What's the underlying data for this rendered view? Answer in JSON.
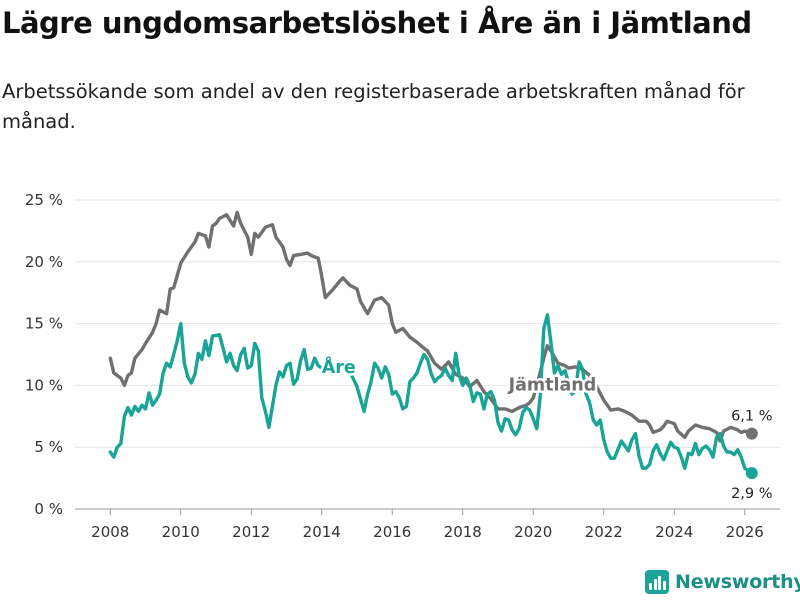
{
  "header": {
    "title": "Lägre ungdomsarbetslöshet i Åre än i Jämtland",
    "subtitle": "Arbetssökande som andel av den registerbaserade arbetskraften månad för månad."
  },
  "brand": {
    "name": "Newsworthy",
    "logo_icon": "bar-chart-icon"
  },
  "chart_data": {
    "type": "line",
    "title": "Lägre ungdomsarbetslöshet i Åre än i Jämtland",
    "xlabel": "",
    "ylabel": "",
    "xlim": [
      2007.0,
      2027.0
    ],
    "ylim": [
      0,
      25
    ],
    "yticks": [
      0,
      5,
      10,
      15,
      20,
      25
    ],
    "ytick_labels": [
      "0 %",
      "5 %",
      "10 %",
      "15 %",
      "20 %",
      "25 %"
    ],
    "xticks": [
      2008,
      2010,
      2012,
      2014,
      2016,
      2018,
      2020,
      2022,
      2024,
      2026
    ],
    "xtick_labels": [
      "2008",
      "2010",
      "2012",
      "2014",
      "2016",
      "2018",
      "2020",
      "2022",
      "2024",
      "2026"
    ],
    "grid": "horizontal",
    "series": [
      {
        "name": "Jämtland",
        "color": "#707070",
        "end_label": "6,1 %",
        "points": [
          [
            2008.0,
            12.2
          ],
          [
            2008.1,
            11.0
          ],
          [
            2008.3,
            10.6
          ],
          [
            2008.4,
            10.0
          ],
          [
            2008.5,
            10.8
          ],
          [
            2008.6,
            11.0
          ],
          [
            2008.7,
            12.2
          ],
          [
            2008.9,
            12.9
          ],
          [
            2009.0,
            13.4
          ],
          [
            2009.2,
            14.3
          ],
          [
            2009.3,
            15.0
          ],
          [
            2009.4,
            16.1
          ],
          [
            2009.6,
            15.8
          ],
          [
            2009.7,
            17.8
          ],
          [
            2009.8,
            17.9
          ],
          [
            2010.0,
            19.9
          ],
          [
            2010.2,
            20.8
          ],
          [
            2010.4,
            21.6
          ],
          [
            2010.5,
            22.3
          ],
          [
            2010.7,
            22.1
          ],
          [
            2010.8,
            21.2
          ],
          [
            2010.9,
            22.9
          ],
          [
            2011.0,
            23.1
          ],
          [
            2011.1,
            23.5
          ],
          [
            2011.3,
            23.8
          ],
          [
            2011.5,
            22.9
          ],
          [
            2011.6,
            24.0
          ],
          [
            2011.7,
            23.1
          ],
          [
            2011.9,
            22.0
          ],
          [
            2012.0,
            20.6
          ],
          [
            2012.1,
            22.3
          ],
          [
            2012.2,
            22.0
          ],
          [
            2012.4,
            22.8
          ],
          [
            2012.6,
            23.0
          ],
          [
            2012.7,
            22.0
          ],
          [
            2012.9,
            21.2
          ],
          [
            2013.0,
            20.2
          ],
          [
            2013.1,
            19.7
          ],
          [
            2013.2,
            20.5
          ],
          [
            2013.4,
            20.6
          ],
          [
            2013.6,
            20.7
          ],
          [
            2013.7,
            20.5
          ],
          [
            2013.9,
            20.3
          ],
          [
            2014.0,
            18.8
          ],
          [
            2014.1,
            17.1
          ],
          [
            2014.3,
            17.7
          ],
          [
            2014.5,
            18.4
          ],
          [
            2014.6,
            18.7
          ],
          [
            2014.8,
            18.1
          ],
          [
            2015.0,
            17.8
          ],
          [
            2015.1,
            16.8
          ],
          [
            2015.3,
            15.8
          ],
          [
            2015.5,
            16.9
          ],
          [
            2015.7,
            17.1
          ],
          [
            2015.9,
            16.5
          ],
          [
            2016.0,
            15.0
          ],
          [
            2016.1,
            14.3
          ],
          [
            2016.3,
            14.6
          ],
          [
            2016.5,
            13.9
          ],
          [
            2016.7,
            13.5
          ],
          [
            2016.9,
            13.0
          ],
          [
            2017.0,
            12.8
          ],
          [
            2017.2,
            11.8
          ],
          [
            2017.4,
            11.3
          ],
          [
            2017.6,
            11.9
          ],
          [
            2017.8,
            10.9
          ],
          [
            2018.0,
            10.6
          ],
          [
            2018.2,
            9.9
          ],
          [
            2018.4,
            10.4
          ],
          [
            2018.6,
            9.5
          ],
          [
            2018.8,
            8.9
          ],
          [
            2019.0,
            8.1
          ],
          [
            2019.2,
            8.1
          ],
          [
            2019.4,
            7.9
          ],
          [
            2019.6,
            8.2
          ],
          [
            2019.8,
            8.4
          ],
          [
            2019.9,
            8.6
          ],
          [
            2020.0,
            9.0
          ],
          [
            2020.15,
            10.5
          ],
          [
            2020.3,
            12.2
          ],
          [
            2020.4,
            13.2
          ],
          [
            2020.5,
            12.8
          ],
          [
            2020.7,
            11.8
          ],
          [
            2020.9,
            11.6
          ],
          [
            2021.0,
            11.4
          ],
          [
            2021.2,
            11.5
          ],
          [
            2021.4,
            11.3
          ],
          [
            2021.6,
            10.8
          ],
          [
            2021.8,
            9.9
          ],
          [
            2022.0,
            8.8
          ],
          [
            2022.2,
            8.0
          ],
          [
            2022.4,
            8.1
          ],
          [
            2022.6,
            7.9
          ],
          [
            2022.8,
            7.6
          ],
          [
            2023.0,
            7.1
          ],
          [
            2023.2,
            7.1
          ],
          [
            2023.3,
            6.8
          ],
          [
            2023.4,
            6.2
          ],
          [
            2023.6,
            6.4
          ],
          [
            2023.7,
            6.7
          ],
          [
            2023.8,
            7.1
          ],
          [
            2024.0,
            6.9
          ],
          [
            2024.1,
            6.3
          ],
          [
            2024.3,
            5.8
          ],
          [
            2024.4,
            6.3
          ],
          [
            2024.6,
            6.8
          ],
          [
            2024.8,
            6.6
          ],
          [
            2025.0,
            6.5
          ],
          [
            2025.2,
            6.2
          ],
          [
            2025.3,
            5.5
          ],
          [
            2025.4,
            6.3
          ],
          [
            2025.6,
            6.6
          ],
          [
            2025.8,
            6.4
          ],
          [
            2025.9,
            6.2
          ],
          [
            2026.0,
            6.3
          ],
          [
            2026.2,
            6.1
          ]
        ]
      },
      {
        "name": "Åre",
        "color": "#18a497",
        "end_label": "2,9 %",
        "points": [
          [
            2008.0,
            4.6
          ],
          [
            2008.1,
            4.2
          ],
          [
            2008.2,
            5.0
          ],
          [
            2008.3,
            5.3
          ],
          [
            2008.4,
            7.5
          ],
          [
            2008.5,
            8.2
          ],
          [
            2008.6,
            7.6
          ],
          [
            2008.7,
            8.3
          ],
          [
            2008.8,
            7.9
          ],
          [
            2008.9,
            8.4
          ],
          [
            2009.0,
            8.1
          ],
          [
            2009.1,
            9.4
          ],
          [
            2009.2,
            8.4
          ],
          [
            2009.3,
            8.8
          ],
          [
            2009.4,
            9.3
          ],
          [
            2009.5,
            11.0
          ],
          [
            2009.6,
            11.8
          ],
          [
            2009.7,
            11.5
          ],
          [
            2009.8,
            12.5
          ],
          [
            2009.9,
            13.6
          ],
          [
            2010.0,
            15.0
          ],
          [
            2010.1,
            11.8
          ],
          [
            2010.2,
            10.7
          ],
          [
            2010.3,
            10.2
          ],
          [
            2010.4,
            10.9
          ],
          [
            2010.5,
            12.6
          ],
          [
            2010.6,
            12.1
          ],
          [
            2010.7,
            13.6
          ],
          [
            2010.8,
            12.4
          ],
          [
            2010.9,
            14.0
          ],
          [
            2011.1,
            14.1
          ],
          [
            2011.2,
            13.0
          ],
          [
            2011.3,
            11.9
          ],
          [
            2011.4,
            12.6
          ],
          [
            2011.5,
            11.6
          ],
          [
            2011.6,
            11.2
          ],
          [
            2011.7,
            12.5
          ],
          [
            2011.8,
            13.0
          ],
          [
            2011.9,
            11.4
          ],
          [
            2012.0,
            11.6
          ],
          [
            2012.1,
            13.4
          ],
          [
            2012.2,
            12.8
          ],
          [
            2012.3,
            9.0
          ],
          [
            2012.4,
            7.9
          ],
          [
            2012.5,
            6.6
          ],
          [
            2012.6,
            8.3
          ],
          [
            2012.7,
            10.0
          ],
          [
            2012.8,
            11.1
          ],
          [
            2012.9,
            10.7
          ],
          [
            2013.0,
            11.6
          ],
          [
            2013.1,
            11.8
          ],
          [
            2013.2,
            10.1
          ],
          [
            2013.3,
            10.5
          ],
          [
            2013.4,
            12.0
          ],
          [
            2013.5,
            12.9
          ],
          [
            2013.6,
            11.3
          ],
          [
            2013.7,
            11.4
          ],
          [
            2013.8,
            12.2
          ],
          [
            2013.9,
            11.6
          ],
          [
            2014.0,
            11.4
          ],
          [
            2014.3,
            11.2
          ],
          [
            2014.6,
            11.6
          ],
          [
            2014.8,
            11.1
          ],
          [
            2014.9,
            10.5
          ],
          [
            2015.0,
            9.9
          ],
          [
            2015.1,
            8.9
          ],
          [
            2015.2,
            7.9
          ],
          [
            2015.3,
            9.3
          ],
          [
            2015.4,
            10.3
          ],
          [
            2015.5,
            11.8
          ],
          [
            2015.6,
            11.4
          ],
          [
            2015.7,
            10.6
          ],
          [
            2015.8,
            11.5
          ],
          [
            2015.9,
            10.9
          ],
          [
            2016.0,
            9.3
          ],
          [
            2016.1,
            9.5
          ],
          [
            2016.2,
            9.0
          ],
          [
            2016.3,
            8.1
          ],
          [
            2016.4,
            8.3
          ],
          [
            2016.5,
            10.3
          ],
          [
            2016.6,
            10.6
          ],
          [
            2016.7,
            11.0
          ],
          [
            2016.8,
            11.8
          ],
          [
            2016.9,
            12.5
          ],
          [
            2017.0,
            12.1
          ],
          [
            2017.1,
            11.0
          ],
          [
            2017.2,
            10.3
          ],
          [
            2017.3,
            10.6
          ],
          [
            2017.4,
            10.8
          ],
          [
            2017.5,
            11.4
          ],
          [
            2017.6,
            10.8
          ],
          [
            2017.7,
            10.4
          ],
          [
            2017.8,
            12.6
          ],
          [
            2017.9,
            10.8
          ],
          [
            2018.0,
            10.0
          ],
          [
            2018.1,
            10.6
          ],
          [
            2018.2,
            10.0
          ],
          [
            2018.3,
            8.7
          ],
          [
            2018.4,
            9.4
          ],
          [
            2018.5,
            9.3
          ],
          [
            2018.6,
            8.1
          ],
          [
            2018.7,
            9.3
          ],
          [
            2018.8,
            9.5
          ],
          [
            2018.9,
            8.8
          ],
          [
            2019.0,
            7.0
          ],
          [
            2019.1,
            6.3
          ],
          [
            2019.2,
            7.3
          ],
          [
            2019.3,
            7.2
          ],
          [
            2019.4,
            6.4
          ],
          [
            2019.5,
            6.0
          ],
          [
            2019.6,
            6.5
          ],
          [
            2019.7,
            7.8
          ],
          [
            2019.8,
            8.2
          ],
          [
            2019.9,
            8.0
          ],
          [
            2020.0,
            7.3
          ],
          [
            2020.1,
            6.5
          ],
          [
            2020.2,
            9.2
          ],
          [
            2020.3,
            14.6
          ],
          [
            2020.4,
            15.7
          ],
          [
            2020.5,
            13.5
          ],
          [
            2020.6,
            11.0
          ],
          [
            2020.7,
            11.6
          ],
          [
            2020.8,
            10.9
          ],
          [
            2020.9,
            11.2
          ],
          [
            2021.0,
            10.2
          ],
          [
            2021.1,
            9.3
          ],
          [
            2021.2,
            9.6
          ],
          [
            2021.3,
            11.9
          ],
          [
            2021.4,
            11.3
          ],
          [
            2021.5,
            9.3
          ],
          [
            2021.6,
            8.6
          ],
          [
            2021.7,
            7.2
          ],
          [
            2021.8,
            6.8
          ],
          [
            2021.9,
            7.2
          ],
          [
            2022.0,
            5.6
          ],
          [
            2022.1,
            4.6
          ],
          [
            2022.2,
            4.1
          ],
          [
            2022.3,
            4.1
          ],
          [
            2022.4,
            4.8
          ],
          [
            2022.5,
            5.5
          ],
          [
            2022.6,
            5.1
          ],
          [
            2022.7,
            4.7
          ],
          [
            2022.8,
            5.6
          ],
          [
            2022.9,
            6.1
          ],
          [
            2023.0,
            4.3
          ],
          [
            2023.1,
            3.3
          ],
          [
            2023.2,
            3.3
          ],
          [
            2023.3,
            3.6
          ],
          [
            2023.4,
            4.7
          ],
          [
            2023.5,
            5.2
          ],
          [
            2023.6,
            4.5
          ],
          [
            2023.7,
            4.0
          ],
          [
            2023.8,
            4.7
          ],
          [
            2023.9,
            5.4
          ],
          [
            2024.0,
            5.0
          ],
          [
            2024.1,
            4.9
          ],
          [
            2024.2,
            4.2
          ],
          [
            2024.3,
            3.3
          ],
          [
            2024.4,
            4.5
          ],
          [
            2024.5,
            4.4
          ],
          [
            2024.6,
            5.3
          ],
          [
            2024.7,
            4.4
          ],
          [
            2024.8,
            4.9
          ],
          [
            2024.9,
            5.1
          ],
          [
            2025.0,
            4.8
          ],
          [
            2025.1,
            4.2
          ],
          [
            2025.2,
            5.8
          ],
          [
            2025.3,
            6.1
          ],
          [
            2025.4,
            5.1
          ],
          [
            2025.5,
            4.6
          ],
          [
            2025.6,
            4.6
          ],
          [
            2025.7,
            4.4
          ],
          [
            2025.8,
            4.8
          ],
          [
            2025.9,
            4.2
          ],
          [
            2026.0,
            3.3
          ],
          [
            2026.2,
            2.9
          ]
        ]
      }
    ],
    "annotations": [
      {
        "text": "Åre",
        "series": "Åre",
        "x": 2014.0,
        "y": 11.0
      },
      {
        "text": "Jämtland",
        "series": "Jämtland",
        "x": 2019.3,
        "y": 9.6
      }
    ]
  }
}
